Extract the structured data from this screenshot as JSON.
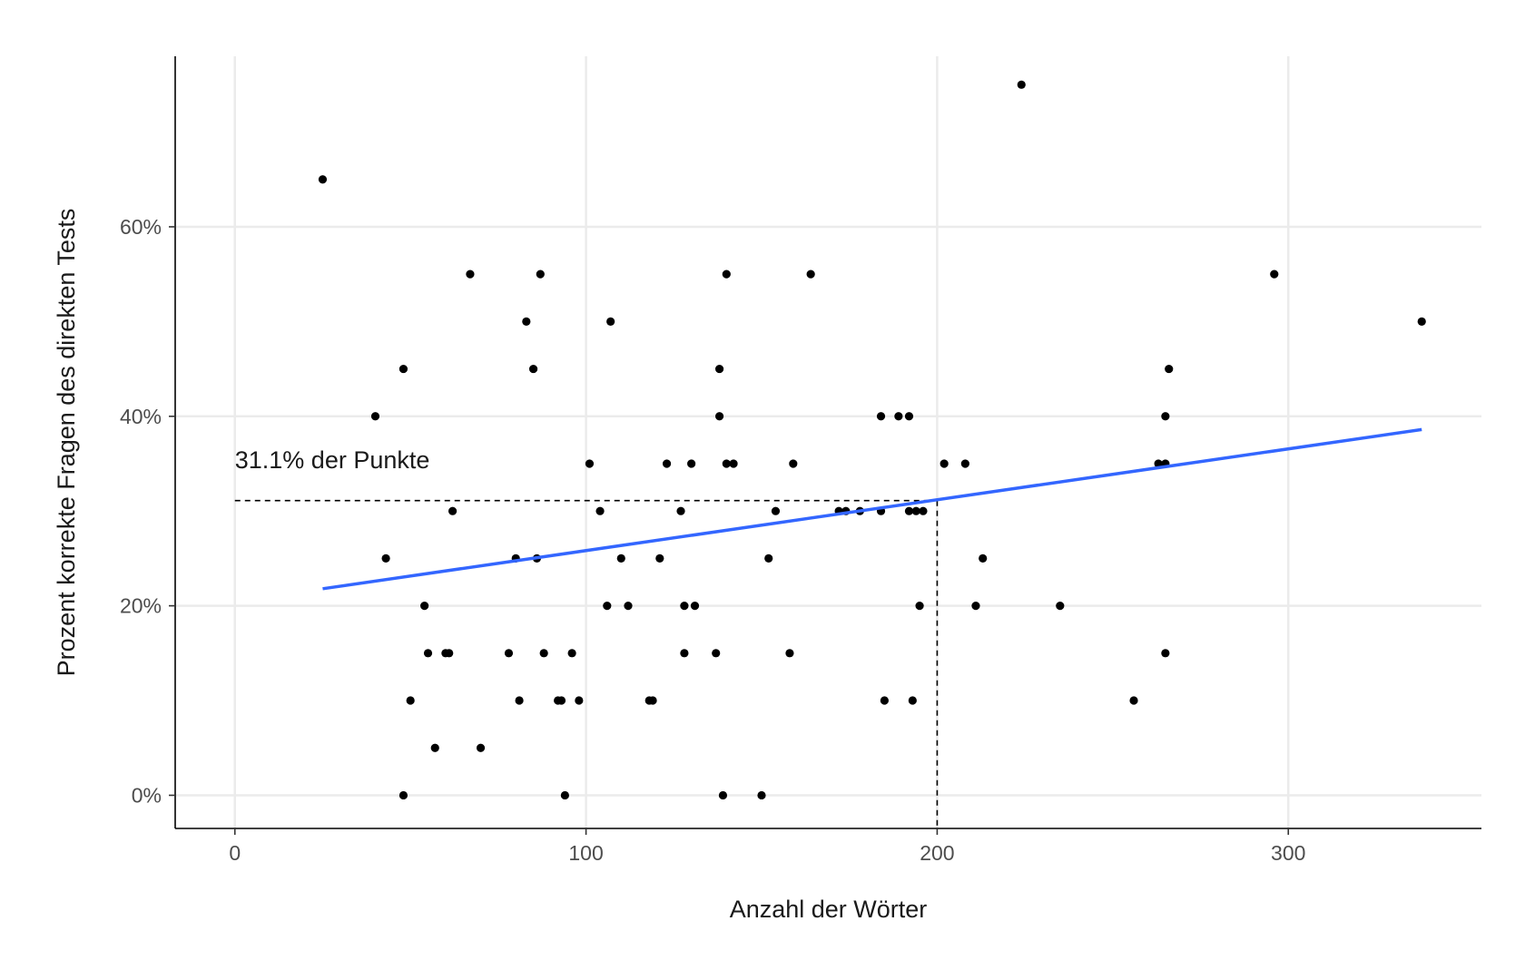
{
  "chart_data": {
    "type": "scatter",
    "xlabel": "Anzahl der Wörter",
    "ylabel": "Prozent korrekte Fragen des direkten Tests",
    "xlim": [
      -17,
      355
    ],
    "ylim": [
      -3.5,
      78
    ],
    "x_ticks": [
      0,
      100,
      200,
      300
    ],
    "x_tick_labels": [
      "0",
      "100",
      "200",
      "300"
    ],
    "y_ticks": [
      0,
      20,
      40,
      60
    ],
    "y_tick_labels": [
      "0%",
      "20%",
      "40%",
      "60%"
    ],
    "grid": true,
    "points": [
      [
        25,
        65
      ],
      [
        224,
        75
      ],
      [
        67,
        55
      ],
      [
        87,
        55
      ],
      [
        140,
        55
      ],
      [
        164,
        55
      ],
      [
        296,
        55
      ],
      [
        83,
        50
      ],
      [
        107,
        50
      ],
      [
        338,
        50
      ],
      [
        48,
        45
      ],
      [
        85,
        45
      ],
      [
        138,
        45
      ],
      [
        266,
        45
      ],
      [
        40,
        40
      ],
      [
        138,
        40
      ],
      [
        184,
        40
      ],
      [
        189,
        40
      ],
      [
        192,
        40
      ],
      [
        265,
        40
      ],
      [
        101,
        35
      ],
      [
        123,
        35
      ],
      [
        130,
        35
      ],
      [
        140,
        35
      ],
      [
        142,
        35
      ],
      [
        159,
        35
      ],
      [
        202,
        35
      ],
      [
        208,
        35
      ],
      [
        263,
        35
      ],
      [
        265,
        35
      ],
      [
        62,
        30
      ],
      [
        104,
        30
      ],
      [
        127,
        30
      ],
      [
        154,
        30
      ],
      [
        172,
        30
      ],
      [
        174,
        30
      ],
      [
        178,
        30
      ],
      [
        184,
        30
      ],
      [
        192,
        30
      ],
      [
        194,
        30
      ],
      [
        196,
        30
      ],
      [
        43,
        25
      ],
      [
        80,
        25
      ],
      [
        86,
        25
      ],
      [
        110,
        25
      ],
      [
        121,
        25
      ],
      [
        152,
        25
      ],
      [
        213,
        25
      ],
      [
        54,
        20
      ],
      [
        106,
        20
      ],
      [
        112,
        20
      ],
      [
        128,
        20
      ],
      [
        131,
        20
      ],
      [
        195,
        20
      ],
      [
        211,
        20
      ],
      [
        235,
        20
      ],
      [
        55,
        15
      ],
      [
        60,
        15
      ],
      [
        61,
        15
      ],
      [
        78,
        15
      ],
      [
        88,
        15
      ],
      [
        96,
        15
      ],
      [
        128,
        15
      ],
      [
        137,
        15
      ],
      [
        158,
        15
      ],
      [
        265,
        15
      ],
      [
        50,
        10
      ],
      [
        81,
        10
      ],
      [
        92,
        10
      ],
      [
        93,
        10
      ],
      [
        98,
        10
      ],
      [
        118,
        10
      ],
      [
        119,
        10
      ],
      [
        185,
        10
      ],
      [
        193,
        10
      ],
      [
        256,
        10
      ],
      [
        57,
        5
      ],
      [
        70,
        5
      ],
      [
        48,
        0
      ],
      [
        94,
        0
      ],
      [
        139,
        0
      ],
      [
        150,
        0
      ]
    ],
    "trend_line": {
      "color": "#3366ff",
      "x": [
        25,
        338
      ],
      "y": [
        21.8,
        38.6
      ]
    },
    "reference_lines": {
      "x": 200,
      "y": 31.1,
      "style": "dashed"
    },
    "annotation": {
      "text": "31.1% der Punkte",
      "x": 0,
      "y": 34.5
    }
  }
}
